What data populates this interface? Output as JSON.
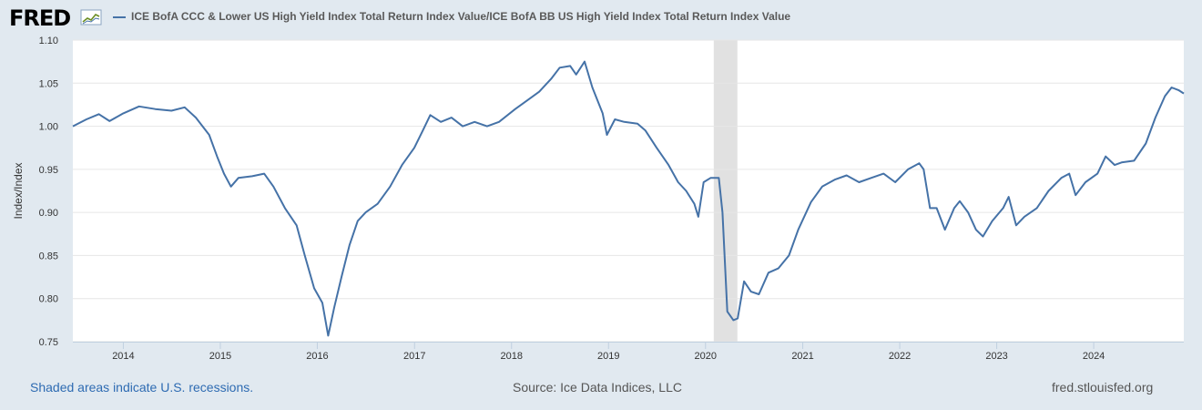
{
  "header": {
    "logo_text": "FRED",
    "logo_icon": "line-chart-icon",
    "legend_label": "ICE BofA CCC & Lower US High Yield Index Total Return Index Value/ICE BofA BB US High Yield Index Total Return Index Value",
    "legend_color": "#4572a7"
  },
  "footer": {
    "recession_note": "Shaded areas indicate U.S. recessions.",
    "source": "Source: Ice Data Indices, LLC",
    "site": "fred.stlouisfed.org"
  },
  "colors": {
    "background": "#e1e9f0",
    "plot_background": "#ffffff",
    "series": "#4572a7",
    "recession": "#e1e1e1",
    "link": "#2e6bb2"
  },
  "chart_data": {
    "type": "line",
    "title": "",
    "xlabel": "",
    "ylabel": "Index/Index",
    "ylim": [
      0.75,
      1.1
    ],
    "xlim": [
      "2013-06-25",
      "2024-12-05"
    ],
    "grid": "horizontal",
    "legend": "top",
    "y_ticks": [
      "0.75",
      "0.80",
      "0.85",
      "0.90",
      "0.95",
      "1.00",
      "1.05",
      "1.10"
    ],
    "x_ticks": [
      {
        "date": "2014-01-01",
        "label": "2014"
      },
      {
        "date": "2015-01-01",
        "label": "2015"
      },
      {
        "date": "2016-01-01",
        "label": "2016"
      },
      {
        "date": "2017-01-01",
        "label": "2017"
      },
      {
        "date": "2018-01-01",
        "label": "2018"
      },
      {
        "date": "2019-01-01",
        "label": "2019"
      },
      {
        "date": "2020-01-01",
        "label": "2020"
      },
      {
        "date": "2021-01-01",
        "label": "2021"
      },
      {
        "date": "2022-01-01",
        "label": "2022"
      },
      {
        "date": "2023-01-01",
        "label": "2023"
      },
      {
        "date": "2024-01-01",
        "label": "2024"
      }
    ],
    "recessions": [
      {
        "start": "2020-02-01",
        "end": "2020-04-30"
      }
    ],
    "series": [
      {
        "color": "#4572a7",
        "points": [
          [
            "2013-06-25",
            1.0
          ],
          [
            "2013-08-15",
            1.008
          ],
          [
            "2013-10-01",
            1.014
          ],
          [
            "2013-11-10",
            1.006
          ],
          [
            "2014-01-01",
            1.015
          ],
          [
            "2014-03-01",
            1.023
          ],
          [
            "2014-05-01",
            1.02
          ],
          [
            "2014-07-01",
            1.018
          ],
          [
            "2014-08-20",
            1.022
          ],
          [
            "2014-10-01",
            1.01
          ],
          [
            "2014-11-20",
            0.99
          ],
          [
            "2014-12-20",
            0.965
          ],
          [
            "2015-01-15",
            0.945
          ],
          [
            "2015-02-10",
            0.93
          ],
          [
            "2015-03-10",
            0.94
          ],
          [
            "2015-05-01",
            0.942
          ],
          [
            "2015-06-15",
            0.945
          ],
          [
            "2015-07-20",
            0.93
          ],
          [
            "2015-09-01",
            0.905
          ],
          [
            "2015-10-15",
            0.885
          ],
          [
            "2015-11-15",
            0.85
          ],
          [
            "2015-12-20",
            0.812
          ],
          [
            "2016-01-20",
            0.795
          ],
          [
            "2016-02-11",
            0.757
          ],
          [
            "2016-03-05",
            0.79
          ],
          [
            "2016-04-01",
            0.825
          ],
          [
            "2016-05-01",
            0.862
          ],
          [
            "2016-06-01",
            0.89
          ],
          [
            "2016-07-01",
            0.9
          ],
          [
            "2016-08-15",
            0.91
          ],
          [
            "2016-10-01",
            0.93
          ],
          [
            "2016-11-15",
            0.955
          ],
          [
            "2016-12-31",
            0.975
          ],
          [
            "2017-02-01",
            0.995
          ],
          [
            "2017-03-01",
            1.013
          ],
          [
            "2017-04-10",
            1.005
          ],
          [
            "2017-05-20",
            1.01
          ],
          [
            "2017-07-01",
            1.0
          ],
          [
            "2017-08-15",
            1.005
          ],
          [
            "2017-10-01",
            1.0
          ],
          [
            "2017-11-15",
            1.005
          ],
          [
            "2018-01-15",
            1.02
          ],
          [
            "2018-03-01",
            1.03
          ],
          [
            "2018-04-15",
            1.04
          ],
          [
            "2018-05-30",
            1.055
          ],
          [
            "2018-07-01",
            1.068
          ],
          [
            "2018-08-10",
            1.07
          ],
          [
            "2018-09-01",
            1.06
          ],
          [
            "2018-10-03",
            1.075
          ],
          [
            "2018-11-01",
            1.045
          ],
          [
            "2018-12-10",
            1.015
          ],
          [
            "2018-12-26",
            0.99
          ],
          [
            "2019-01-25",
            1.008
          ],
          [
            "2019-03-01",
            1.005
          ],
          [
            "2019-04-20",
            1.003
          ],
          [
            "2019-05-20",
            0.995
          ],
          [
            "2019-07-01",
            0.975
          ],
          [
            "2019-08-15",
            0.955
          ],
          [
            "2019-09-20",
            0.935
          ],
          [
            "2019-10-20",
            0.925
          ],
          [
            "2019-11-20",
            0.91
          ],
          [
            "2019-12-05",
            0.895
          ],
          [
            "2019-12-25",
            0.935
          ],
          [
            "2020-01-20",
            0.94
          ],
          [
            "2020-02-20",
            0.94
          ],
          [
            "2020-03-05",
            0.9
          ],
          [
            "2020-03-23",
            0.785
          ],
          [
            "2020-04-15",
            0.775
          ],
          [
            "2020-05-01",
            0.777
          ],
          [
            "2020-05-25",
            0.82
          ],
          [
            "2020-06-20",
            0.808
          ],
          [
            "2020-07-20",
            0.805
          ],
          [
            "2020-08-25",
            0.83
          ],
          [
            "2020-10-01",
            0.835
          ],
          [
            "2020-11-10",
            0.85
          ],
          [
            "2020-12-15",
            0.88
          ],
          [
            "2021-02-01",
            0.912
          ],
          [
            "2021-03-15",
            0.93
          ],
          [
            "2021-05-01",
            0.938
          ],
          [
            "2021-06-15",
            0.943
          ],
          [
            "2021-08-01",
            0.935
          ],
          [
            "2021-09-15",
            0.94
          ],
          [
            "2021-11-01",
            0.945
          ],
          [
            "2021-12-15",
            0.935
          ],
          [
            "2022-02-01",
            0.95
          ],
          [
            "2022-03-15",
            0.957
          ],
          [
            "2022-04-01",
            0.95
          ],
          [
            "2022-04-25",
            0.905
          ],
          [
            "2022-05-20",
            0.905
          ],
          [
            "2022-06-20",
            0.88
          ],
          [
            "2022-07-25",
            0.905
          ],
          [
            "2022-08-15",
            0.913
          ],
          [
            "2022-09-15",
            0.9
          ],
          [
            "2022-10-15",
            0.88
          ],
          [
            "2022-11-10",
            0.872
          ],
          [
            "2022-12-15",
            0.89
          ],
          [
            "2023-01-25",
            0.905
          ],
          [
            "2023-02-15",
            0.918
          ],
          [
            "2023-03-15",
            0.885
          ],
          [
            "2023-04-15",
            0.895
          ],
          [
            "2023-06-01",
            0.905
          ],
          [
            "2023-07-15",
            0.925
          ],
          [
            "2023-09-01",
            0.94
          ],
          [
            "2023-10-01",
            0.945
          ],
          [
            "2023-10-25",
            0.92
          ],
          [
            "2023-12-01",
            0.935
          ],
          [
            "2024-01-15",
            0.945
          ],
          [
            "2024-02-15",
            0.965
          ],
          [
            "2024-03-20",
            0.955
          ],
          [
            "2024-04-15",
            0.958
          ],
          [
            "2024-06-01",
            0.96
          ],
          [
            "2024-07-15",
            0.98
          ],
          [
            "2024-08-20",
            1.01
          ],
          [
            "2024-09-25",
            1.035
          ],
          [
            "2024-10-20",
            1.045
          ],
          [
            "2024-11-15",
            1.042
          ],
          [
            "2024-12-05",
            1.038
          ]
        ]
      }
    ]
  }
}
